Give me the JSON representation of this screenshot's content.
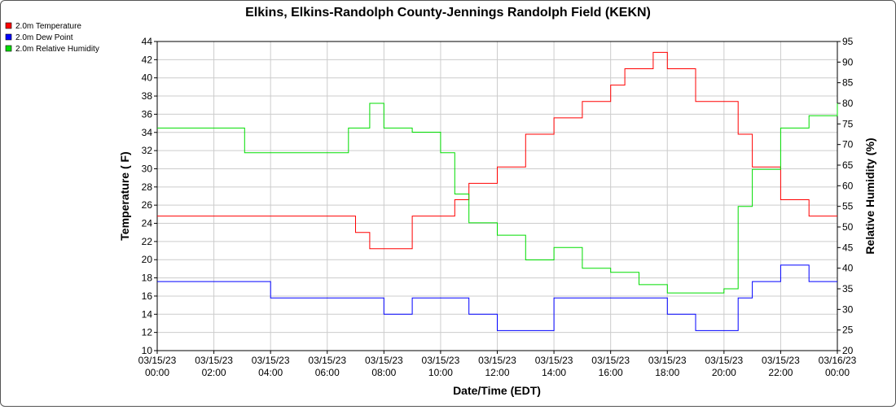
{
  "chart_data": {
    "type": "line",
    "title": "Elkins, Elkins-Randolph County-Jennings Randolph Field (KEKN)",
    "xlabel": "Date/Time (EDT)",
    "ylabel_left": "Temperature ( F)",
    "ylabel_right": "Relative Humidity (%)",
    "ylim_left": [
      10,
      44
    ],
    "ylim_right": [
      20,
      95
    ],
    "yticks_left": [
      10,
      12,
      14,
      16,
      18,
      20,
      22,
      24,
      26,
      28,
      30,
      32,
      34,
      36,
      38,
      40,
      42,
      44
    ],
    "yticks_right": [
      20,
      25,
      30,
      35,
      40,
      45,
      50,
      55,
      60,
      65,
      70,
      75,
      80,
      85,
      90,
      95
    ],
    "xlim": [
      "2023-03-15 00:00",
      "2023-03-16 00:00"
    ],
    "x_tick_labels": [
      {
        "date": "03/15/23",
        "time": "00:00"
      },
      {
        "date": "03/15/23",
        "time": "02:00"
      },
      {
        "date": "03/15/23",
        "time": "04:00"
      },
      {
        "date": "03/15/23",
        "time": "06:00"
      },
      {
        "date": "03/15/23",
        "time": "08:00"
      },
      {
        "date": "03/15/23",
        "time": "10:00"
      },
      {
        "date": "03/15/23",
        "time": "12:00"
      },
      {
        "date": "03/15/23",
        "time": "14:00"
      },
      {
        "date": "03/15/23",
        "time": "16:00"
      },
      {
        "date": "03/15/23",
        "time": "18:00"
      },
      {
        "date": "03/15/23",
        "time": "20:00"
      },
      {
        "date": "03/15/23",
        "time": "22:00"
      },
      {
        "date": "03/16/23",
        "time": "00:00"
      }
    ],
    "grid": true,
    "legend_position": "top-left",
    "series": [
      {
        "name": "2.0m Temperature",
        "color": "#ff0000",
        "axis": "left",
        "x": [
          "2023-03-15 00:00",
          "2023-03-15 01:00",
          "2023-03-15 02:00",
          "2023-03-15 03:00",
          "2023-03-15 04:00",
          "2023-03-15 05:00",
          "2023-03-15 06:00",
          "2023-03-15 07:00",
          "2023-03-15 07:30",
          "2023-03-15 08:00",
          "2023-03-15 08:30",
          "2023-03-15 09:00",
          "2023-03-15 10:00",
          "2023-03-15 10:30",
          "2023-03-15 11:00",
          "2023-03-15 12:00",
          "2023-03-15 12:30",
          "2023-03-15 13:00",
          "2023-03-15 14:00",
          "2023-03-15 14:30",
          "2023-03-15 15:00",
          "2023-03-15 16:00",
          "2023-03-15 16:30",
          "2023-03-15 17:00",
          "2023-03-15 17:30",
          "2023-03-15 18:00",
          "2023-03-15 18:30",
          "2023-03-15 19:00",
          "2023-03-15 20:00",
          "2023-03-15 20:30",
          "2023-03-15 21:00",
          "2023-03-15 22:00",
          "2023-03-15 23:00",
          "2023-03-16 00:00"
        ],
        "y": [
          24.8,
          24.8,
          24.8,
          24.8,
          24.8,
          24.8,
          24.8,
          23.0,
          21.2,
          21.2,
          21.2,
          24.8,
          24.8,
          26.6,
          28.4,
          30.2,
          30.2,
          33.8,
          35.6,
          35.6,
          37.4,
          39.2,
          41.0,
          41.0,
          42.8,
          41.0,
          41.0,
          37.4,
          37.4,
          33.8,
          30.2,
          26.6,
          24.8,
          24.8
        ]
      },
      {
        "name": "2.0m Dew Point",
        "color": "#0000ff",
        "axis": "left",
        "x": [
          "2023-03-15 00:00",
          "2023-03-15 01:00",
          "2023-03-15 02:00",
          "2023-03-15 03:00",
          "2023-03-15 04:00",
          "2023-03-15 05:00",
          "2023-03-15 06:00",
          "2023-03-15 07:00",
          "2023-03-15 08:00",
          "2023-03-15 09:00",
          "2023-03-15 10:00",
          "2023-03-15 11:00",
          "2023-03-15 12:00",
          "2023-03-15 13:00",
          "2023-03-15 14:00",
          "2023-03-15 15:00",
          "2023-03-15 16:00",
          "2023-03-15 17:00",
          "2023-03-15 18:00",
          "2023-03-15 19:00",
          "2023-03-15 20:00",
          "2023-03-15 20:30",
          "2023-03-15 21:00",
          "2023-03-15 22:00",
          "2023-03-15 23:00",
          "2023-03-16 00:00"
        ],
        "y": [
          17.6,
          17.6,
          17.6,
          17.6,
          15.8,
          15.8,
          15.8,
          15.8,
          14.0,
          15.8,
          15.8,
          14.0,
          12.2,
          12.2,
          15.8,
          15.8,
          15.8,
          15.8,
          14.0,
          12.2,
          12.2,
          15.8,
          17.6,
          19.4,
          17.6,
          17.6
        ]
      },
      {
        "name": "2.0m Relative Humidity",
        "color": "#00dd00",
        "axis": "right",
        "x": [
          "2023-03-15 00:00",
          "2023-03-15 01:00",
          "2023-03-15 02:00",
          "2023-03-15 03:00",
          "2023-03-15 03:05",
          "2023-03-15 04:00",
          "2023-03-15 05:00",
          "2023-03-15 06:00",
          "2023-03-15 06:45",
          "2023-03-15 07:30",
          "2023-03-15 08:00",
          "2023-03-15 08:30",
          "2023-03-15 09:00",
          "2023-03-15 10:00",
          "2023-03-15 10:30",
          "2023-03-15 11:00",
          "2023-03-15 12:00",
          "2023-03-15 13:00",
          "2023-03-15 14:00",
          "2023-03-15 15:00",
          "2023-03-15 16:00",
          "2023-03-15 17:00",
          "2023-03-15 18:00",
          "2023-03-15 19:00",
          "2023-03-15 20:00",
          "2023-03-15 20:30",
          "2023-03-15 21:00",
          "2023-03-15 22:00",
          "2023-03-15 23:00",
          "2023-03-16 00:00"
        ],
        "y": [
          74,
          74,
          74,
          74,
          68,
          68,
          68,
          68,
          74,
          80,
          74,
          74,
          73,
          68,
          58,
          51,
          48,
          42,
          45,
          40,
          39,
          36,
          34,
          34,
          35,
          55,
          64,
          74,
          77,
          80
        ]
      }
    ]
  }
}
